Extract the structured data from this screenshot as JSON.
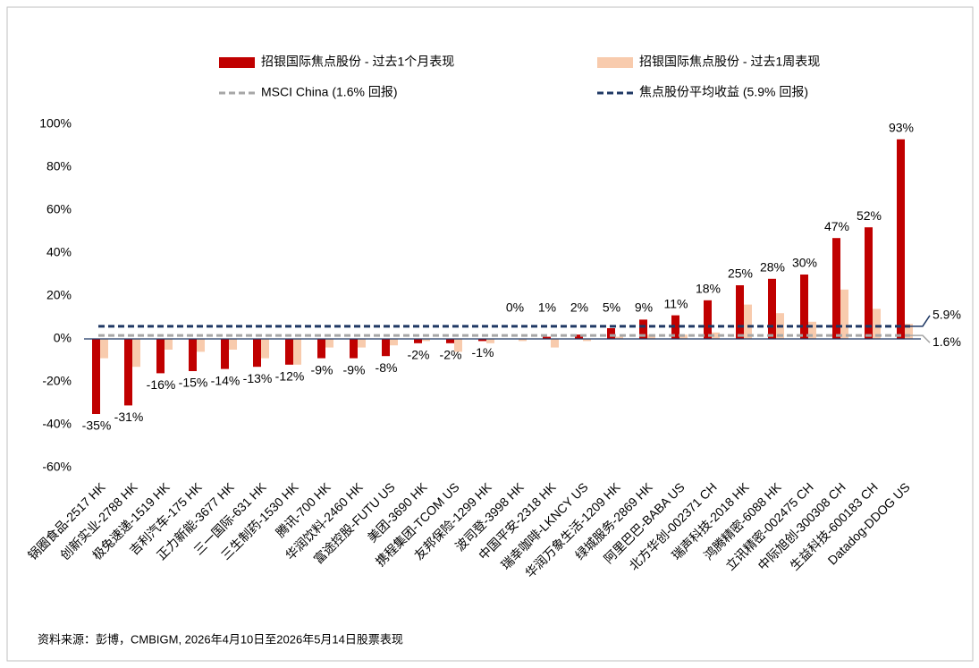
{
  "chart_data": {
    "type": "bar",
    "categories": [
      "锅圈食品-2517 HK",
      "创新实业-2788 HK",
      "极兔速递-1519 HK",
      "吉利汽车-175 HK",
      "正力新能-3677 HK",
      "三一国际-631 HK",
      "三生制药-1530 HK",
      "腾讯-700 HK",
      "华润饮料-2460 HK",
      "富途控股-FUTU US",
      "美团-3690 HK",
      "携程集团-TCOM US",
      "友邦保险-1299 HK",
      "波司登-3998 HK",
      "中国平安-2318 HK",
      "瑞幸咖啡-LKNCY US",
      "华润万象生活-1209 HK",
      "绿城服务-2869 HK",
      "阿里巴巴-BABA US",
      "北方华创-002371 CH",
      "瑞声科技-2018 HK",
      "鸿腾精密-6088 HK",
      "立讯精密-002475 CH",
      "中际旭创-300308 CH",
      "生益科技-600183 CH",
      "Datadog-DDOG US"
    ],
    "series": [
      {
        "name": "招银国际焦点股份 - 过去1个月表现",
        "color": "#c00000",
        "values": [
          -35,
          -31,
          -16,
          -15,
          -14,
          -13,
          -12,
          -9,
          -9,
          -8,
          -2,
          -2,
          -1,
          0,
          1,
          2,
          5,
          9,
          11,
          18,
          25,
          28,
          30,
          47,
          52,
          93
        ],
        "value_labels": [
          "-35%",
          "-31%",
          "-16%",
          "-15%",
          "-14%",
          "-13%",
          "-12%",
          "-9%",
          "-9%",
          "-8%",
          "-2%",
          "-2%",
          "-1%",
          "0%",
          "1%",
          "2%",
          "5%",
          "9%",
          "11%",
          "18%",
          "25%",
          "28%",
          "30%",
          "47%",
          "52%",
          "93%"
        ]
      },
      {
        "name": "招银国际焦点股份 - 过去1周表现",
        "color": "#f8cbad",
        "values": [
          -9,
          -13,
          -5,
          -6,
          -5,
          -9,
          -12,
          -4,
          -4,
          -3,
          -1,
          -6,
          -2,
          -1,
          -4,
          -1,
          1,
          2,
          2,
          3,
          16,
          12,
          8,
          23,
          14,
          7
        ]
      }
    ],
    "hlines": [
      {
        "name": "MSCI China (1.6% 回报)",
        "color": "#a6a6a6",
        "value": 1.6,
        "label": "1.6%"
      },
      {
        "name": "焦点股份平均收益 (5.9% 回报)",
        "color": "#1f3864",
        "value": 5.9,
        "label": "5.9%"
      }
    ],
    "ylim": [
      -60,
      100
    ],
    "yticks": [
      {
        "value": -60,
        "label": "-60%"
      },
      {
        "value": -40,
        "label": "-40%"
      },
      {
        "value": -20,
        "label": "-20%"
      },
      {
        "value": 0,
        "label": "0%"
      },
      {
        "value": 20,
        "label": "20%"
      },
      {
        "value": 40,
        "label": "40%"
      },
      {
        "value": 60,
        "label": "60%"
      },
      {
        "value": 80,
        "label": "80%"
      },
      {
        "value": 100,
        "label": "100%"
      }
    ],
    "source": "资料来源：彭博，CMBIGM, 2026年4月10日至2026年5月14日股票表现"
  }
}
